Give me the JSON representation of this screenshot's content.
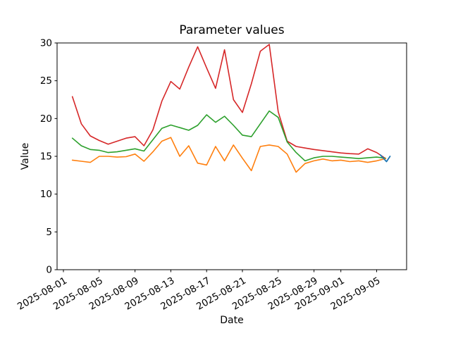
{
  "figure": {
    "title": "Parameter values",
    "xlabel": "Date",
    "ylabel": "Value"
  },
  "chart_data": {
    "type": "line",
    "title": "Parameter values",
    "xlabel": "Date",
    "ylabel": "Value",
    "grid": false,
    "legend": "none",
    "ylim": [
      0,
      30
    ],
    "yticks": [
      0,
      5,
      10,
      15,
      20,
      25,
      30
    ],
    "x_origin": "2025-08-01",
    "xtick_labels": [
      "2025-08-01",
      "2025-08-05",
      "2025-08-09",
      "2025-08-13",
      "2025-08-17",
      "2025-08-21",
      "2025-08-25",
      "2025-08-29",
      "2025-09-01",
      "2025-09-05"
    ],
    "xtick_day_offsets": [
      0,
      4,
      8,
      12,
      16,
      20,
      24,
      28,
      31,
      35
    ],
    "dates": [
      "2025-08-02",
      "2025-08-03",
      "2025-08-04",
      "2025-08-05",
      "2025-08-06",
      "2025-08-07",
      "2025-08-08",
      "2025-08-09",
      "2025-08-10",
      "2025-08-11",
      "2025-08-12",
      "2025-08-13",
      "2025-08-14",
      "2025-08-15",
      "2025-08-16",
      "2025-08-17",
      "2025-08-18",
      "2025-08-19",
      "2025-08-20",
      "2025-08-21",
      "2025-08-22",
      "2025-08-23",
      "2025-08-24",
      "2025-08-25",
      "2025-08-26",
      "2025-08-27",
      "2025-08-28",
      "2025-08-29",
      "2025-08-30",
      "2025-08-31",
      "2025-09-01",
      "2025-09-02",
      "2025-09-03",
      "2025-09-04",
      "2025-09-05",
      "2025-09-06"
    ],
    "series": [
      {
        "name": "red-series",
        "color": "#d62728",
        "line_width": 1.6,
        "values": [
          22.9,
          19.3,
          17.7,
          17.1,
          16.6,
          17.0,
          17.4,
          17.6,
          16.4,
          18.5,
          22.3,
          24.9,
          23.9,
          26.8,
          29.5,
          26.7,
          24.0,
          29.1,
          22.5,
          20.8,
          24.6,
          28.9,
          29.8,
          20.9,
          17.0,
          16.3,
          16.1,
          15.9,
          15.75,
          15.6,
          15.45,
          15.35,
          15.3,
          16.0,
          15.5,
          14.7
        ]
      },
      {
        "name": "green-series",
        "color": "#2ca02c",
        "line_width": 1.6,
        "values": [
          17.4,
          16.4,
          15.9,
          15.8,
          15.5,
          15.6,
          15.8,
          16.0,
          15.7,
          17.2,
          18.7,
          19.15,
          18.8,
          18.45,
          19.1,
          20.5,
          19.5,
          20.3,
          19.1,
          17.8,
          17.6,
          19.3,
          21.0,
          20.15,
          16.9,
          15.5,
          14.4,
          14.8,
          15.0,
          15.0,
          14.9,
          14.8,
          14.7,
          14.8,
          14.9,
          14.75
        ]
      },
      {
        "name": "orange-series",
        "color": "#ff7f0e",
        "line_width": 1.6,
        "values": [
          14.5,
          14.35,
          14.2,
          15.0,
          15.0,
          14.9,
          14.95,
          15.3,
          14.35,
          15.6,
          17.0,
          17.5,
          15.0,
          16.4,
          14.1,
          13.85,
          16.3,
          14.4,
          16.5,
          14.75,
          13.1,
          16.3,
          16.5,
          16.3,
          15.3,
          12.9,
          14.05,
          14.4,
          14.65,
          14.4,
          14.5,
          14.3,
          14.4,
          14.2,
          14.4,
          14.7
        ]
      },
      {
        "name": "blue-series",
        "color": "#1f77b4",
        "line_width": 1.8,
        "day_offsets": [
          35.4,
          36.1,
          36.5
        ],
        "values": [
          15.2,
          14.3,
          15.0
        ]
      }
    ]
  }
}
